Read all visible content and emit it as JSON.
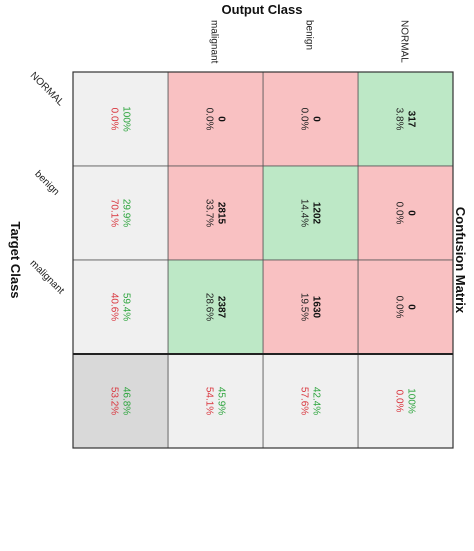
{
  "chart_data": {
    "type": "heatmap",
    "title": "Confusion Matrix",
    "xlabel": "Output Class",
    "ylabel": "Target Class",
    "output_classes": [
      "NORMAL",
      "benign",
      "malignant"
    ],
    "target_classes": [
      "NORMAL",
      "benign",
      "malignant"
    ],
    "counts": [
      [
        317,
        0,
        0
      ],
      [
        0,
        1202,
        2815
      ],
      [
        0,
        1630,
        2387
      ]
    ],
    "percents": [
      [
        "3.8%",
        "0.0%",
        "0.0%"
      ],
      [
        "0.0%",
        "14.4%",
        "33.7%"
      ],
      [
        "0.0%",
        "19.5%",
        "28.6%"
      ]
    ],
    "row_summary": [
      {
        "correct": "100%",
        "wrong": "0.0%"
      },
      {
        "correct": "29.9%",
        "wrong": "70.1%"
      },
      {
        "correct": "59.4%",
        "wrong": "40.6%"
      }
    ],
    "column_summary": [
      {
        "correct": "100%",
        "wrong": "0.0%"
      },
      {
        "correct": "42.4%",
        "wrong": "57.6%"
      },
      {
        "correct": "45.9%",
        "wrong": "54.1%"
      }
    ],
    "overall": {
      "correct": "46.8%",
      "wrong": "53.2%"
    },
    "colors": {
      "correct_cell": "#bde8c6",
      "wrong_cell": "#f9c1c2",
      "summary_cell": "#f0f0f0",
      "overall_cell": "#d9d9d9",
      "correct_text": "#2ea53e",
      "wrong_text": "#d9363e",
      "grid_line": "#555555"
    }
  }
}
